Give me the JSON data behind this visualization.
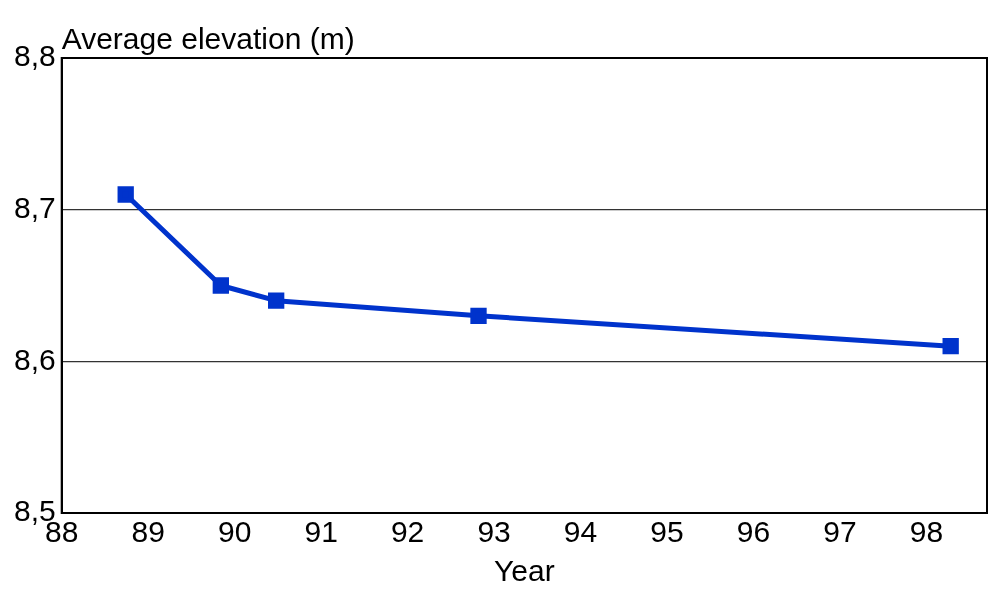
{
  "chart_data": {
    "type": "line",
    "ylabel": "Average elevation (m)",
    "xlabel": "Year",
    "x": [
      88.74,
      89.84,
      90.48,
      92.82,
      98.28
    ],
    "series": [
      {
        "color": "#0033cc",
        "values": [
          8.71,
          8.65,
          8.64,
          8.63,
          8.61
        ]
      }
    ],
    "xlim": [
      88,
      98.7
    ],
    "xticks": [
      88,
      89,
      90,
      91,
      92,
      93,
      94,
      95,
      96,
      97,
      98
    ],
    "ylim": [
      8.5,
      8.8
    ],
    "yticks": [
      {
        "value": 8.5,
        "label": "8,5"
      },
      {
        "value": 8.6,
        "label": "8,6"
      },
      {
        "value": 8.7,
        "label": "8,7"
      },
      {
        "value": 8.8,
        "label": "8,8"
      }
    ],
    "grid": "y",
    "marker": "square",
    "line_style": "solid",
    "legend": false
  }
}
